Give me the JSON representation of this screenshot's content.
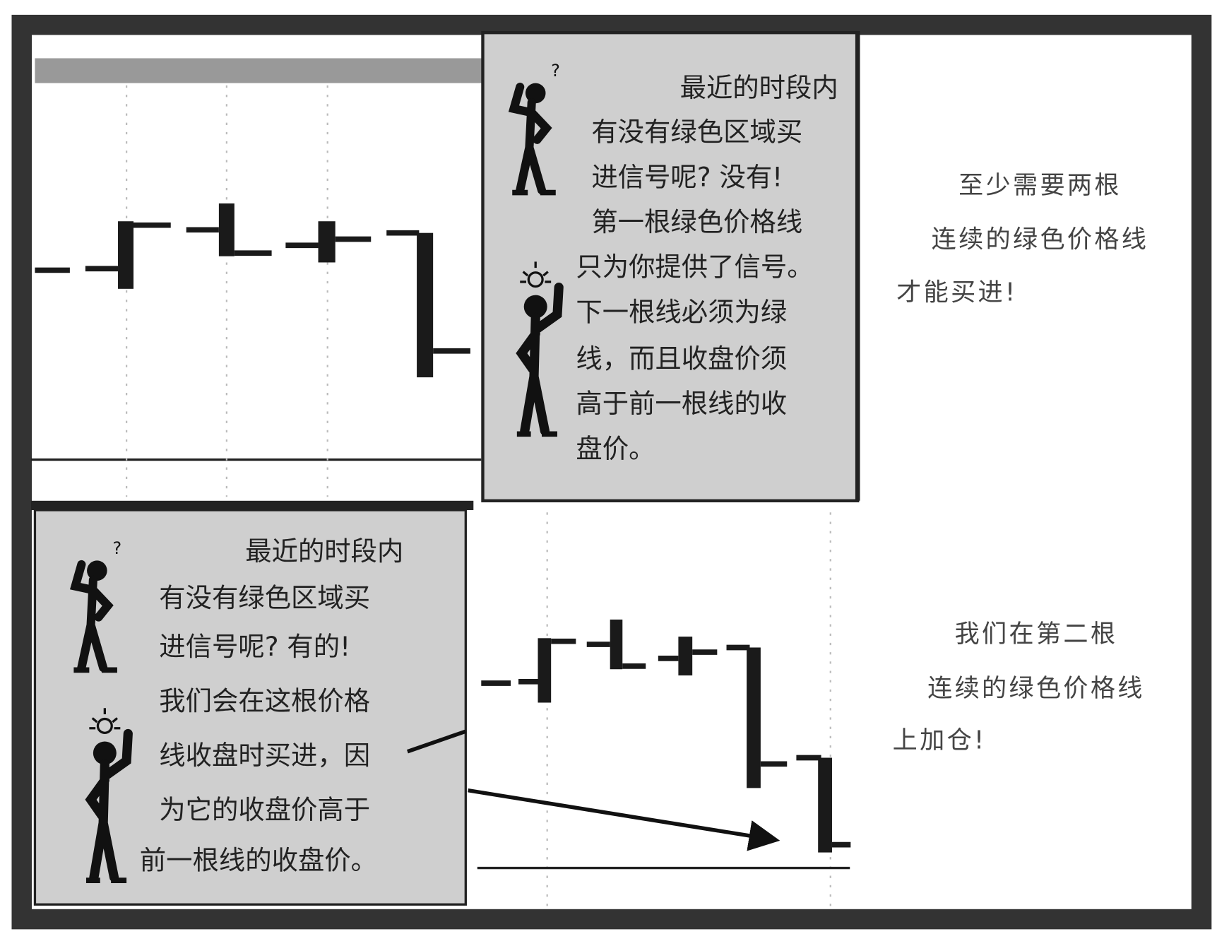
{
  "panels": [
    {
      "callout_lines": [
        "最近的时段内",
        "有没有绿色区域买",
        "进信号呢? 没有!",
        "第一根绿色价格线",
        "只为你提供了信号。",
        "下一根线必须为绿",
        "线，而且收盘价须",
        "高于前一根线的收",
        "盘价。"
      ],
      "note_lines": [
        "至少需要两根",
        "连续的绿色价格线",
        "才能买进!"
      ]
    },
    {
      "callout_lines": [
        "最近的时段内",
        "有没有绿色区域买",
        "进信号呢? 有的!",
        "我们会在这根价格",
        "线收盘时买进，因",
        "为它的收盘价高于",
        "前一根线的收盘价。"
      ],
      "note_lines": [
        "我们在第二根",
        "连续的绿色价格线",
        "上加仓!"
      ]
    }
  ]
}
